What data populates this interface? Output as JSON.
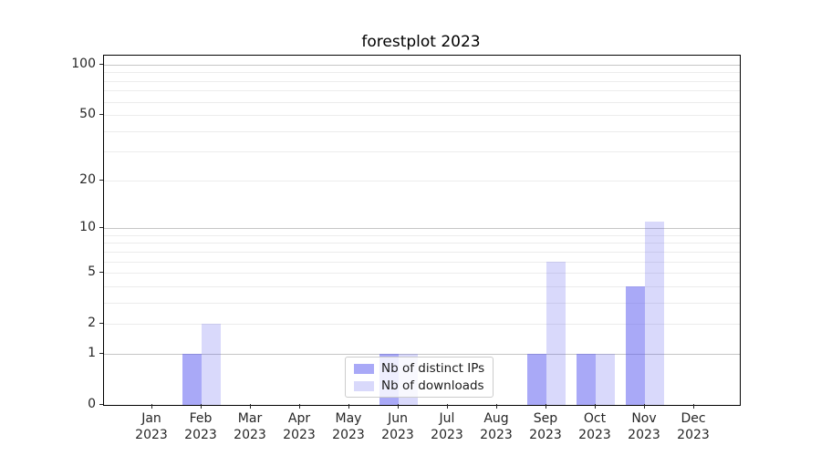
{
  "chart_data": {
    "type": "bar",
    "title": "forestplot 2023",
    "categories": [
      "Jan",
      "Feb",
      "Mar",
      "Apr",
      "May",
      "Jun",
      "Jul",
      "Aug",
      "Sep",
      "Oct",
      "Nov",
      "Dec"
    ],
    "x_year": "2023",
    "series": [
      {
        "name": "Nb of distinct IPs",
        "color": "rgba(83,83,239,0.5)",
        "values": [
          0,
          1,
          0,
          0,
          0,
          1,
          0,
          0,
          1,
          1,
          4,
          0
        ]
      },
      {
        "name": "Nb of downloads",
        "color": "rgba(83,83,239,0.22)",
        "values": [
          0,
          2,
          0,
          0,
          0,
          1,
          0,
          0,
          6,
          1,
          11,
          0
        ]
      }
    ],
    "y_axis": {
      "scale": "log1p",
      "ylim": [
        0,
        113
      ],
      "tick_labels": [
        100,
        50,
        20,
        10,
        5,
        2,
        1,
        0
      ],
      "major_gridlines": [
        1,
        10,
        100
      ],
      "minor_gridlines": [
        2,
        3,
        4,
        5,
        6,
        7,
        8,
        9,
        20,
        30,
        40,
        50,
        60,
        70,
        80,
        90
      ]
    },
    "xlabel": "",
    "ylabel": "",
    "grid": true,
    "legend": {
      "position": "lower center"
    }
  },
  "colors": {
    "bar_distinct_ips": "rgba(83,83,239,0.5)",
    "bar_downloads": "rgba(83,83,239,0.22)",
    "grid_major": "#c6c6c6",
    "grid_minor": "#ececec",
    "spine": "#000000",
    "tick_text": "#262626",
    "legend_border": "#cccccc",
    "background": "#ffffff"
  }
}
